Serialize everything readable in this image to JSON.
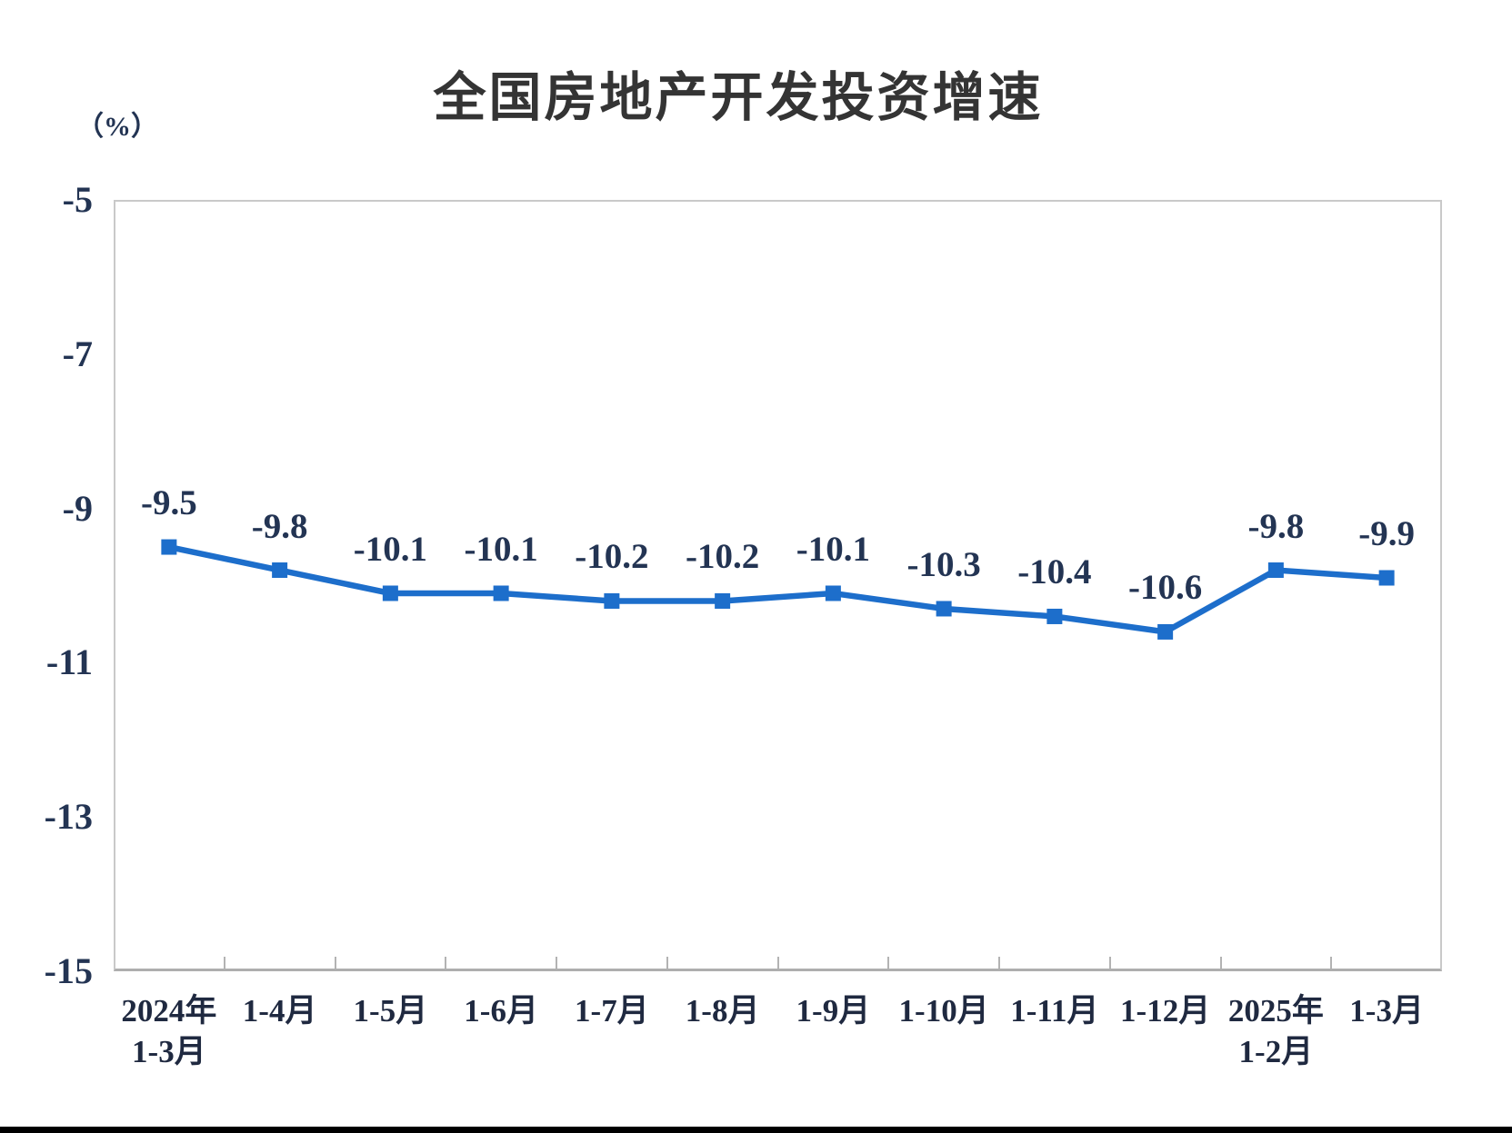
{
  "page": {
    "background_color": "#ffffff",
    "bottom_bar_color": "#000000"
  },
  "chart_data": {
    "type": "line",
    "title": "全国房地产开发投资增速",
    "unit_label": "（%）",
    "categories": [
      [
        "2024年",
        "1-3月"
      ],
      [
        "1-4月"
      ],
      [
        "1-5月"
      ],
      [
        "1-6月"
      ],
      [
        "1-7月"
      ],
      [
        "1-8月"
      ],
      [
        "1-9月"
      ],
      [
        "1-10月"
      ],
      [
        "1-11月"
      ],
      [
        "1-12月"
      ],
      [
        "2025年",
        "1-2月"
      ],
      [
        "1-3月"
      ]
    ],
    "values": [
      -9.5,
      -9.8,
      -10.1,
      -10.1,
      -10.2,
      -10.2,
      -10.1,
      -10.3,
      -10.4,
      -10.6,
      -9.8,
      -9.9
    ],
    "point_labels": [
      "-9.5",
      "-9.8",
      "-10.1",
      "-10.1",
      "-10.2",
      "-10.2",
      "-10.1",
      "-10.3",
      "-10.4",
      "-10.6",
      "-9.8",
      "-9.9"
    ],
    "y_ticks": [
      -5,
      -7,
      -9,
      -11,
      -13,
      -15
    ],
    "y_tick_labels": [
      "-5",
      "-7",
      "-9",
      "-11",
      "-13",
      "-15"
    ],
    "ylim": [
      -15,
      -5
    ],
    "xlabel": "",
    "ylabel": "（%）",
    "grid": false,
    "legend": "none",
    "marker": "square",
    "series_color": "#1d6ecb",
    "label_color": "#233453",
    "axis_color": "#c9c9c9"
  }
}
